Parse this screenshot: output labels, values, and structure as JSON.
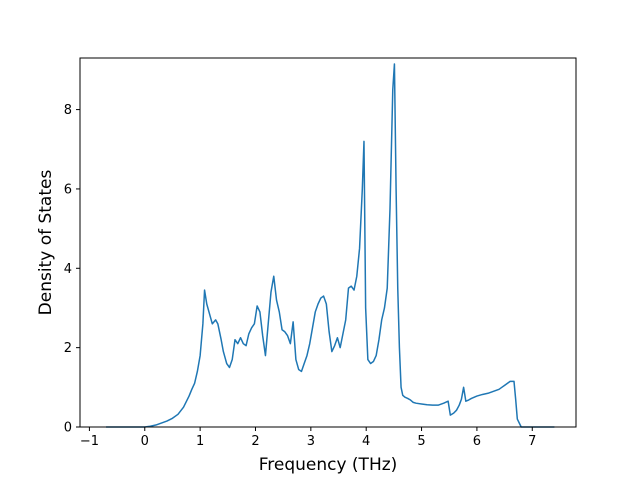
{
  "chart_data": {
    "type": "line",
    "title": "",
    "xlabel": "Frequency (THz)",
    "ylabel": "Density of States",
    "xlim": [
      -1.17,
      7.79
    ],
    "ylim": [
      0,
      9.3
    ],
    "x_ticks": [
      -1,
      0,
      1,
      2,
      3,
      4,
      5,
      6,
      7
    ],
    "y_ticks": [
      0,
      2,
      4,
      6,
      8
    ],
    "grid": false,
    "legend": "none",
    "series": [
      {
        "color": "#1f77b4",
        "x": [
          -0.7,
          0.0,
          0.1,
          0.2,
          0.3,
          0.4,
          0.5,
          0.6,
          0.7,
          0.8,
          0.85,
          0.9,
          0.95,
          1.0,
          1.05,
          1.08,
          1.12,
          1.18,
          1.22,
          1.28,
          1.32,
          1.38,
          1.42,
          1.48,
          1.53,
          1.58,
          1.63,
          1.68,
          1.73,
          1.78,
          1.83,
          1.88,
          1.93,
          1.98,
          2.03,
          2.08,
          2.13,
          2.18,
          2.23,
          2.28,
          2.33,
          2.38,
          2.43,
          2.48,
          2.53,
          2.58,
          2.63,
          2.68,
          2.73,
          2.78,
          2.83,
          2.88,
          2.93,
          2.98,
          3.03,
          3.08,
          3.13,
          3.18,
          3.23,
          3.28,
          3.33,
          3.38,
          3.43,
          3.48,
          3.53,
          3.58,
          3.63,
          3.68,
          3.73,
          3.78,
          3.83,
          3.88,
          3.93,
          3.96,
          3.99,
          4.03,
          4.08,
          4.13,
          4.18,
          4.23,
          4.28,
          4.33,
          4.38,
          4.43,
          4.48,
          4.51,
          4.54,
          4.57,
          4.6,
          4.63,
          4.66,
          4.7,
          4.75,
          4.8,
          4.85,
          4.9,
          5.0,
          5.1,
          5.2,
          5.3,
          5.4,
          5.48,
          5.52,
          5.58,
          5.63,
          5.68,
          5.72,
          5.76,
          5.8,
          5.85,
          5.9,
          6.0,
          6.1,
          6.2,
          6.3,
          6.4,
          6.45,
          6.5,
          6.55,
          6.6,
          6.65,
          6.67,
          6.7,
          6.73,
          6.8,
          7.0,
          7.4
        ],
        "y": [
          0.0,
          0.0,
          0.02,
          0.05,
          0.1,
          0.15,
          0.22,
          0.32,
          0.5,
          0.78,
          0.95,
          1.1,
          1.4,
          1.8,
          2.6,
          3.45,
          3.1,
          2.8,
          2.6,
          2.7,
          2.6,
          2.2,
          1.9,
          1.6,
          1.5,
          1.7,
          2.2,
          2.1,
          2.25,
          2.1,
          2.05,
          2.35,
          2.5,
          2.6,
          3.05,
          2.9,
          2.3,
          1.8,
          2.6,
          3.4,
          3.8,
          3.2,
          2.9,
          2.45,
          2.4,
          2.3,
          2.1,
          2.65,
          1.7,
          1.45,
          1.4,
          1.6,
          1.8,
          2.1,
          2.5,
          2.9,
          3.1,
          3.25,
          3.3,
          3.1,
          2.4,
          1.9,
          2.05,
          2.25,
          2.0,
          2.35,
          2.7,
          3.5,
          3.55,
          3.45,
          3.8,
          4.5,
          6.0,
          7.2,
          3.0,
          1.7,
          1.6,
          1.65,
          1.8,
          2.2,
          2.7,
          3.0,
          3.5,
          5.5,
          8.5,
          9.15,
          6.0,
          3.5,
          2.0,
          1.0,
          0.8,
          0.75,
          0.72,
          0.68,
          0.62,
          0.6,
          0.58,
          0.56,
          0.55,
          0.55,
          0.6,
          0.65,
          0.3,
          0.35,
          0.42,
          0.55,
          0.7,
          1.0,
          0.65,
          0.68,
          0.72,
          0.78,
          0.82,
          0.85,
          0.9,
          0.95,
          1.0,
          1.05,
          1.1,
          1.15,
          1.15,
          1.15,
          0.7,
          0.2,
          0.0,
          0.0,
          0.0
        ]
      }
    ]
  }
}
